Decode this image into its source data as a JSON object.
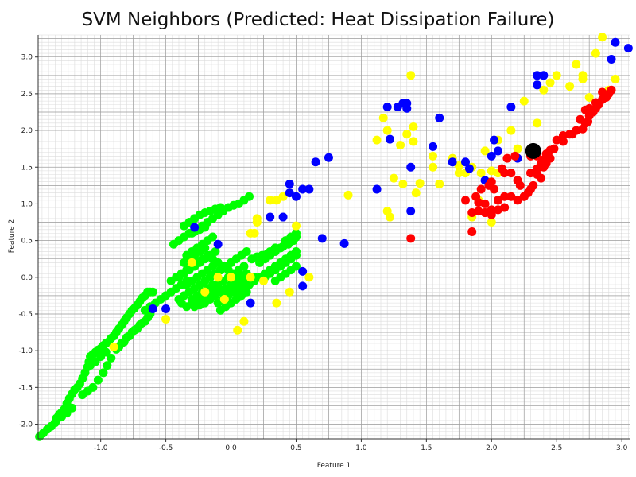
{
  "chart_data": {
    "type": "scatter",
    "title": "SVM Neighbors (Predicted: Heat Dissipation Failure)",
    "xlabel": "Feature 1",
    "ylabel": "Feature 2",
    "xlim": [
      -1.48,
      3.06
    ],
    "ylim": [
      -2.2,
      3.3
    ],
    "x_ticks": [
      "-1.0",
      "-0.5",
      "0.0",
      "0.5",
      "1.0",
      "1.5",
      "2.0",
      "2.5",
      "3.0"
    ],
    "y_ticks": [
      "-2.0",
      "-1.5",
      "-1.0",
      "-0.5",
      "0.0",
      "0.5",
      "1.0",
      "1.5",
      "2.0",
      "2.5",
      "3.0"
    ],
    "grid": true,
    "legend": "none",
    "colors": {
      "green": "#00ff00",
      "yellow": "#ffff00",
      "blue": "#0000ff",
      "red": "#ff0000",
      "query": "#000000"
    },
    "series": [
      {
        "color": "#00ff00",
        "x": [
          -1.47,
          -1.44,
          -1.41,
          -1.38,
          -1.35,
          -1.34,
          -1.32,
          -1.3,
          -1.28,
          -1.26,
          -1.24,
          -1.22,
          -1.2,
          -1.18,
          -1.16,
          -1.14,
          -1.12,
          -1.1,
          -1.09,
          -1.08,
          -1.06,
          -1.04,
          -1.02,
          -1.0,
          -0.98,
          -0.96,
          -0.94,
          -0.92,
          -0.9,
          -0.88,
          -0.86,
          -0.84,
          -0.82,
          -0.8,
          -0.78,
          -0.76,
          -0.74,
          -0.72,
          -0.7,
          -0.68,
          -0.66,
          -0.64,
          -0.62,
          -0.6,
          -1.34,
          -1.3,
          -1.26,
          -1.22,
          -1.14,
          -1.1,
          -1.06,
          -1.02,
          -0.98,
          -0.95,
          -0.92,
          -0.88,
          -0.84,
          -0.8,
          -0.76,
          -0.72,
          -0.68,
          -0.64,
          -1.08,
          -1.04,
          -1.0,
          -0.96,
          -0.86,
          -0.82,
          -0.78,
          -0.74,
          -0.7,
          -0.66,
          -0.62,
          -0.66,
          -0.62,
          -0.58,
          -0.54,
          -0.5,
          -0.46,
          -0.42,
          -0.38,
          -0.34,
          -0.4,
          -0.36,
          -0.32,
          -0.28,
          -0.24,
          -0.2,
          -0.16,
          -0.12,
          -0.44,
          -0.4,
          -0.36,
          -0.32,
          -0.28,
          -0.24,
          -0.2,
          -0.36,
          -0.32,
          -0.28,
          -0.24,
          -0.2,
          -0.16,
          -0.12,
          -0.08,
          -0.34,
          -0.3,
          -0.26,
          -0.22,
          -0.18,
          -0.14,
          -0.36,
          -0.32,
          -0.28,
          -0.24,
          -0.2,
          -0.3,
          -0.26,
          -0.22,
          -0.18,
          -0.14,
          -0.1,
          -0.06,
          -0.02,
          0.02,
          0.06,
          0.1,
          0.14,
          -0.34,
          -0.3,
          -0.26,
          -0.22,
          -0.18,
          -0.14,
          -0.1,
          -0.3,
          -0.26,
          -0.22,
          -0.18,
          -0.14,
          -0.46,
          -0.42,
          -0.38,
          -0.34,
          -0.3,
          -0.26,
          -0.22,
          -0.18,
          -0.14,
          -0.1,
          -0.06,
          -0.02,
          0.02,
          0.06,
          0.1,
          0.14,
          -0.4,
          -0.36,
          -0.32,
          -0.28,
          -0.24,
          -0.2,
          -0.16,
          -0.12,
          -0.08,
          -0.04,
          0.0,
          0.04,
          0.08,
          0.12,
          -0.38,
          -0.34,
          -0.3,
          -0.26,
          -0.22,
          -0.18,
          -0.14,
          -0.1,
          -0.06,
          -0.02,
          0.02,
          0.06,
          0.1,
          -0.1,
          -0.06,
          -0.02,
          0.02,
          0.06,
          0.1,
          0.14,
          0.18,
          -0.08,
          -0.04,
          0.0,
          0.04,
          0.08,
          0.12,
          -0.16,
          -0.12,
          -0.08,
          -0.04,
          0.0,
          0.06,
          0.1,
          0.14,
          0.18,
          0.22,
          0.26,
          0.3,
          0.34,
          0.38,
          0.42,
          0.46,
          0.5,
          0.22,
          0.26,
          0.3,
          0.34,
          0.38,
          0.42,
          0.46,
          0.5,
          0.26,
          0.3,
          0.34,
          0.38,
          0.42,
          0.46,
          0.5,
          0.34,
          0.38,
          0.42,
          0.46,
          0.5,
          0.38,
          0.42,
          0.46,
          0.5,
          0.42,
          0.46,
          0.5,
          0.26,
          0.3,
          0.34,
          0.4,
          0.44,
          0.48,
          0.16,
          0.2,
          0.24,
          0.28,
          0.32,
          -0.26,
          -0.22,
          -0.18,
          -0.14,
          -0.1,
          -0.06,
          -0.02,
          0.02,
          0.06,
          0.1,
          0.14,
          -0.28,
          -0.24,
          -0.2,
          -0.16,
          -0.12,
          -0.08,
          -0.04,
          0.0,
          0.04,
          0.08,
          0.12
        ],
        "y": [
          -2.17,
          -2.12,
          -2.07,
          -2.03,
          -1.98,
          -1.92,
          -1.87,
          -1.84,
          -1.8,
          -1.72,
          -1.65,
          -1.59,
          -1.53,
          -1.5,
          -1.45,
          -1.38,
          -1.3,
          -1.22,
          -1.15,
          -1.08,
          -1.05,
          -1.02,
          -0.99,
          -0.97,
          -0.93,
          -0.9,
          -0.88,
          -0.83,
          -0.8,
          -0.75,
          -0.7,
          -0.65,
          -0.6,
          -0.55,
          -0.5,
          -0.45,
          -0.42,
          -0.38,
          -0.33,
          -0.28,
          -0.25,
          -0.2,
          -0.2,
          -0.2,
          -1.95,
          -1.9,
          -1.85,
          -1.78,
          -1.6,
          -1.55,
          -1.5,
          -1.4,
          -1.3,
          -1.2,
          -1.1,
          -0.98,
          -0.9,
          -0.82,
          -0.75,
          -0.7,
          -0.62,
          -0.55,
          -1.2,
          -1.15,
          -1.08,
          -1.02,
          -0.95,
          -0.88,
          -0.8,
          -0.72,
          -0.65,
          -0.6,
          -0.5,
          -0.45,
          -0.4,
          -0.35,
          -0.3,
          -0.25,
          -0.2,
          -0.15,
          -0.1,
          -0.05,
          0.0,
          0.05,
          0.1,
          0.15,
          0.2,
          0.25,
          0.3,
          0.35,
          0.45,
          0.5,
          0.55,
          0.6,
          0.62,
          0.65,
          0.68,
          0.7,
          0.75,
          0.8,
          0.85,
          0.88,
          0.9,
          0.93,
          0.95,
          0.3,
          0.35,
          0.4,
          0.45,
          0.5,
          0.55,
          0.2,
          0.25,
          0.3,
          0.35,
          0.4,
          0.6,
          0.65,
          0.7,
          0.75,
          0.8,
          0.85,
          0.9,
          0.95,
          0.98,
          1.0,
          1.05,
          1.1,
          -0.1,
          -0.05,
          0.0,
          0.05,
          0.1,
          0.15,
          0.2,
          -0.3,
          -0.25,
          -0.2,
          -0.15,
          -0.1,
          -0.05,
          0.0,
          0.05,
          0.1,
          0.15,
          0.2,
          0.25,
          0.3,
          0.25,
          0.2,
          0.15,
          0.1,
          0.05,
          0.0,
          -0.05,
          -0.1,
          -0.3,
          -0.25,
          -0.2,
          -0.15,
          -0.1,
          -0.05,
          0.0,
          0.05,
          0.1,
          0.15,
          0.2,
          0.25,
          0.3,
          0.35,
          -0.35,
          -0.4,
          -0.35,
          -0.3,
          -0.25,
          -0.2,
          -0.15,
          -0.1,
          -0.05,
          0.0,
          0.05,
          0.1,
          0.15,
          -0.35,
          -0.3,
          -0.25,
          -0.2,
          -0.15,
          -0.1,
          -0.05,
          0.0,
          -0.45,
          -0.4,
          -0.35,
          -0.3,
          -0.25,
          -0.2,
          0.0,
          0.05,
          0.1,
          0.15,
          0.2,
          -0.2,
          -0.15,
          -0.1,
          -0.05,
          0.0,
          0.05,
          0.1,
          0.15,
          0.2,
          0.25,
          0.3,
          0.35,
          0.2,
          0.25,
          0.3,
          0.35,
          0.4,
          0.45,
          0.5,
          0.55,
          0.0,
          0.05,
          0.1,
          0.15,
          0.2,
          0.25,
          0.3,
          -0.05,
          0.0,
          0.05,
          0.1,
          0.15,
          0.4,
          0.45,
          0.5,
          0.55,
          0.5,
          0.55,
          0.6,
          0.3,
          0.35,
          0.4,
          0.42,
          0.45,
          0.5,
          0.25,
          0.28,
          0.3,
          0.32,
          0.35,
          -0.3,
          -0.28,
          -0.25,
          -0.22,
          -0.2,
          -0.18,
          -0.15,
          -0.12,
          -0.1,
          -0.08,
          -0.05,
          -0.4,
          -0.38,
          -0.35,
          -0.3,
          -0.25,
          -0.2,
          -0.15,
          -0.1,
          -0.05,
          0.0,
          0.05
        ]
      },
      {
        "color": "#ffff00",
        "x": [
          -0.9,
          -0.5,
          -0.3,
          -0.2,
          -0.05,
          0.05,
          0.1,
          0.15,
          0.15,
          0.2,
          0.3,
          0.35,
          0.4,
          0.5,
          0.6,
          0.9,
          1.12,
          1.17,
          1.2,
          1.2,
          1.22,
          1.25,
          1.3,
          1.32,
          1.35,
          1.38,
          1.4,
          1.4,
          1.42,
          1.45,
          1.55,
          1.55,
          1.6,
          1.7,
          1.75,
          1.75,
          1.8,
          1.85,
          1.9,
          1.95,
          2.0,
          2.0,
          2.05,
          2.15,
          2.2,
          2.25,
          2.35,
          2.4,
          2.45,
          2.5,
          2.6,
          2.65,
          2.7,
          2.75,
          2.8,
          2.85,
          2.9,
          2.95,
          0.0,
          -0.1,
          0.25,
          0.35,
          0.45,
          0.2,
          0.18,
          1.92,
          1.85,
          2.05,
          1.98,
          2.7
        ],
        "y": [
          -0.95,
          -0.57,
          0.2,
          -0.2,
          -0.3,
          -0.72,
          -0.6,
          0.6,
          0.0,
          0.75,
          1.05,
          1.05,
          1.1,
          0.7,
          0.0,
          1.12,
          1.87,
          2.17,
          0.9,
          2.0,
          0.82,
          1.35,
          1.8,
          1.27,
          1.95,
          2.75,
          2.05,
          1.85,
          1.15,
          1.28,
          1.65,
          1.5,
          1.27,
          1.62,
          1.52,
          1.42,
          1.42,
          0.82,
          1.05,
          1.72,
          1.45,
          0.75,
          1.87,
          2.0,
          1.75,
          2.4,
          2.1,
          2.55,
          2.65,
          2.75,
          2.6,
          2.9,
          2.75,
          2.45,
          3.05,
          3.27,
          2.55,
          2.7,
          0.0,
          0.0,
          -0.05,
          -0.35,
          -0.2,
          0.8,
          0.6,
          1.42,
          1.5,
          1.42,
          1.3,
          2.7
        ]
      },
      {
        "color": "#0000ff",
        "x": [
          -0.6,
          -0.5,
          -0.28,
          -0.1,
          0.15,
          0.3,
          0.4,
          0.45,
          0.5,
          0.55,
          0.55,
          0.65,
          0.7,
          0.75,
          0.87,
          1.12,
          1.2,
          1.22,
          1.28,
          1.32,
          1.35,
          1.35,
          1.38,
          1.38,
          1.55,
          1.6,
          1.7,
          1.8,
          1.83,
          1.95,
          2.0,
          2.02,
          2.05,
          2.15,
          2.2,
          2.35,
          2.4,
          2.35,
          2.92,
          2.95,
          3.05,
          0.45,
          0.55,
          0.6
        ],
        "y": [
          -0.43,
          -0.43,
          0.68,
          0.45,
          -0.35,
          0.82,
          0.82,
          1.27,
          1.1,
          0.08,
          -0.12,
          1.57,
          0.53,
          1.63,
          0.46,
          1.2,
          2.32,
          1.88,
          2.32,
          2.37,
          2.37,
          2.3,
          1.5,
          0.9,
          1.78,
          2.17,
          1.57,
          1.57,
          1.48,
          1.32,
          1.65,
          1.87,
          1.72,
          2.32,
          1.62,
          2.62,
          2.75,
          2.75,
          2.97,
          3.2,
          3.12,
          1.15,
          1.2,
          1.2
        ]
      },
      {
        "color": "#ff0000",
        "x": [
          1.38,
          1.8,
          1.85,
          1.88,
          1.9,
          1.92,
          1.95,
          1.98,
          2.0,
          2.02,
          2.05,
          2.08,
          2.1,
          2.12,
          2.15,
          2.18,
          2.2,
          2.22,
          2.25,
          2.28,
          2.3,
          2.32,
          2.35,
          2.38,
          2.4,
          2.42,
          2.45,
          2.48,
          2.5,
          2.55,
          2.6,
          2.65,
          2.7,
          2.72,
          2.75,
          2.78,
          2.8,
          2.82,
          2.85,
          2.88,
          2.9,
          2.92,
          1.85,
          1.9,
          1.95,
          2.0,
          2.05,
          2.1,
          2.15,
          2.2,
          2.25,
          2.3,
          2.35,
          1.95,
          2.0,
          2.05,
          2.1,
          2.3,
          2.35,
          2.38,
          2.4,
          2.42,
          2.45,
          2.75,
          2.8,
          2.72,
          2.68,
          2.74,
          2.85,
          2.62,
          2.55
        ],
        "y": [
          0.53,
          1.05,
          0.62,
          1.1,
          1.02,
          1.2,
          1.0,
          1.25,
          1.3,
          1.2,
          1.05,
          1.48,
          1.42,
          1.62,
          1.42,
          1.65,
          1.32,
          1.25,
          1.1,
          1.15,
          1.2,
          1.25,
          1.4,
          1.35,
          1.5,
          1.55,
          1.62,
          1.75,
          1.87,
          1.93,
          1.95,
          2.0,
          2.02,
          2.1,
          2.2,
          2.25,
          2.3,
          2.35,
          2.42,
          2.45,
          2.5,
          2.55,
          0.88,
          0.9,
          0.88,
          0.92,
          1.05,
          1.1,
          1.1,
          1.05,
          1.1,
          1.65,
          1.65,
          0.88,
          0.85,
          0.92,
          0.95,
          1.42,
          1.48,
          1.55,
          1.6,
          1.68,
          1.73,
          2.3,
          2.38,
          2.28,
          2.15,
          2.12,
          2.52,
          1.95,
          1.85
        ]
      },
      {
        "color": "#000000",
        "size": "large",
        "x": [
          2.32
        ],
        "y": [
          1.72
        ]
      }
    ]
  }
}
